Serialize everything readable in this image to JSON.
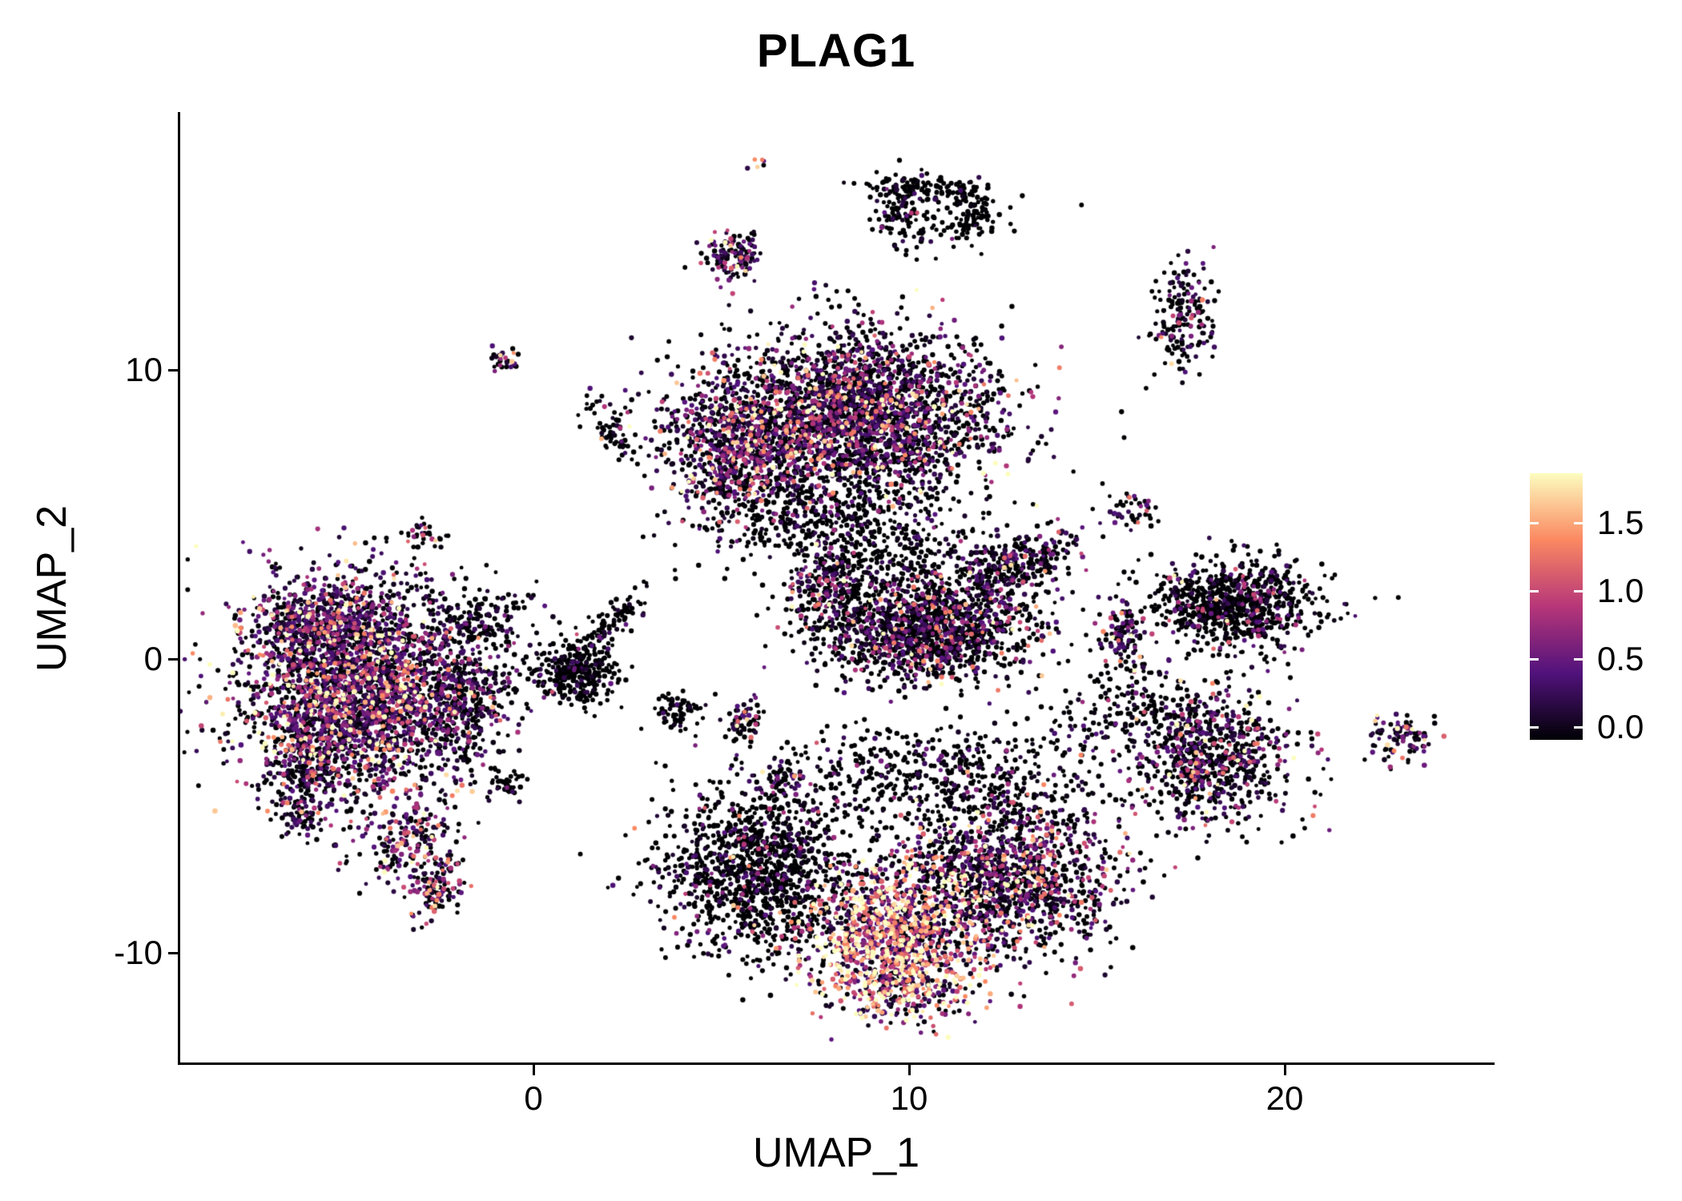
{
  "title": "PLAG1",
  "axes": {
    "x": {
      "label": "UMAP_1",
      "ticks": [
        {
          "value": 0,
          "label": "0"
        },
        {
          "value": 10,
          "label": "10"
        },
        {
          "value": 20,
          "label": "20"
        }
      ]
    },
    "y": {
      "label": "UMAP_2",
      "ticks": [
        {
          "value": 10,
          "label": "10"
        },
        {
          "value": 0,
          "label": "0"
        },
        {
          "value": -10,
          "label": "-10"
        }
      ]
    }
  },
  "colorbar": {
    "ticks": [
      {
        "value": 0.0,
        "label": "0.0"
      },
      {
        "value": 0.5,
        "label": "0.5"
      },
      {
        "value": 1.0,
        "label": "1.0"
      },
      {
        "value": 1.5,
        "label": "1.5"
      }
    ],
    "colormap": "magma",
    "stops": [
      "#000004",
      "#51127c",
      "#b63679",
      "#fb8861",
      "#fcfdbf"
    ]
  },
  "chart_data": {
    "type": "scatter",
    "title": "PLAG1",
    "xlabel": "UMAP_1",
    "ylabel": "UMAP_2",
    "xlim": [
      -9.4,
      25.5
    ],
    "ylim": [
      -13.8,
      18.8
    ],
    "vmax": 1.9,
    "expression_range": [
      0.0,
      1.9
    ],
    "legend_position": "right-colorbar",
    "grid": false,
    "point_count_approx": 18000,
    "clusters": [
      {
        "name": "left-main",
        "n": 2600,
        "cx": -4.7,
        "cy": -1.0,
        "sx": 1.5,
        "sy": 1.8,
        "rot": 0,
        "zero": 0.3,
        "mean": 0.55,
        "hot": 0.03
      },
      {
        "name": "left-top",
        "n": 420,
        "cx": -5.6,
        "cy": 1.3,
        "sx": 1.0,
        "sy": 0.75,
        "rot": 0,
        "zero": 0.32,
        "mean": 0.5,
        "hot": 0.02
      },
      {
        "name": "left-lower-ext",
        "n": 240,
        "cx": -6.1,
        "cy": -3.8,
        "sx": 0.6,
        "sy": 0.9,
        "rot": 0,
        "zero": 0.35,
        "mean": 0.5,
        "hot": 0.02
      },
      {
        "name": "left-right-edge",
        "n": 360,
        "cx": -1.9,
        "cy": -1.7,
        "sx": 0.8,
        "sy": 1.0,
        "rot": 0,
        "zero": 0.5,
        "mean": 0.4,
        "hot": 0.02
      },
      {
        "name": "left-tail-a",
        "n": 190,
        "cx": -3.3,
        "cy": -6.1,
        "sx": 0.55,
        "sy": 0.85,
        "rot": -30,
        "zero": 0.3,
        "mean": 0.55,
        "hot": 0.05
      },
      {
        "name": "left-tail-b",
        "n": 130,
        "cx": -2.5,
        "cy": -7.8,
        "sx": 0.35,
        "sy": 0.6,
        "rot": -20,
        "zero": 0.3,
        "mean": 0.55,
        "hot": 0.06
      },
      {
        "name": "left-topright-sparse",
        "n": 160,
        "cx": -1.4,
        "cy": 1.4,
        "sx": 0.75,
        "sy": 0.7,
        "rot": 0,
        "zero": 0.7,
        "mean": 0.3,
        "hot": 0.01
      },
      {
        "name": "left-below-small",
        "n": 40,
        "cx": -6.3,
        "cy": -5.4,
        "sx": 0.3,
        "sy": 0.3,
        "rot": 0,
        "zero": 0.5,
        "mean": 0.4,
        "hot": 0.02
      },
      {
        "name": "center-connector",
        "n": 280,
        "cx": 1.1,
        "cy": -0.5,
        "sx": 0.55,
        "sy": 0.55,
        "rot": 0,
        "zero": 0.78,
        "mean": 0.25,
        "hot": 0.01
      },
      {
        "name": "diagonal-streak",
        "n": 120,
        "cx": 1.9,
        "cy": 1.0,
        "sx": 1.15,
        "sy": 0.22,
        "rot": 54,
        "zero": 0.82,
        "mean": 0.22,
        "hot": 0.0
      },
      {
        "name": "mid-small-a",
        "n": 70,
        "cx": 3.8,
        "cy": -1.8,
        "sx": 0.35,
        "sy": 0.3,
        "rot": 0,
        "zero": 0.8,
        "mean": 0.2,
        "hot": 0.0
      },
      {
        "name": "mid-small-b",
        "n": 60,
        "cx": 5.6,
        "cy": -2.0,
        "sx": 0.3,
        "sy": 0.32,
        "rot": 0,
        "zero": 0.45,
        "mean": 0.55,
        "hot": 0.08
      },
      {
        "name": "mid-small-c",
        "n": 45,
        "cx": 6.6,
        "cy": -4.1,
        "sx": 0.28,
        "sy": 0.3,
        "rot": 0,
        "zero": 0.4,
        "mean": 0.55,
        "hot": 0.05
      },
      {
        "name": "mid-small-d",
        "n": 40,
        "cx": -0.8,
        "cy": -4.3,
        "sx": 0.3,
        "sy": 0.28,
        "rot": 0,
        "zero": 0.8,
        "mean": 0.2,
        "hot": 0.0
      },
      {
        "name": "topcenter-main",
        "n": 2600,
        "cx": 8.6,
        "cy": 8.4,
        "sx": 1.9,
        "sy": 1.45,
        "rot": 0,
        "zero": 0.45,
        "mean": 0.5,
        "hot": 0.02
      },
      {
        "name": "topcenter-left-lobe",
        "n": 700,
        "cx": 5.4,
        "cy": 7.0,
        "sx": 1.0,
        "sy": 1.15,
        "rot": 0,
        "zero": 0.33,
        "mean": 0.55,
        "hot": 0.03
      },
      {
        "name": "topcenter-below-scatter",
        "n": 430,
        "cx": 7.6,
        "cy": 4.9,
        "sx": 1.5,
        "sy": 0.9,
        "rot": 0,
        "zero": 0.72,
        "mean": 0.3,
        "hot": 0.01
      },
      {
        "name": "topcenter-below-scatter2",
        "n": 220,
        "cx": 9.9,
        "cy": 3.4,
        "sx": 1.1,
        "sy": 0.8,
        "rot": 0,
        "zero": 0.78,
        "mean": 0.28,
        "hot": 0.01
      },
      {
        "name": "midright-main",
        "n": 1400,
        "cx": 10.4,
        "cy": 1.0,
        "sx": 1.5,
        "sy": 0.85,
        "rot": 0,
        "zero": 0.55,
        "mean": 0.42,
        "hot": 0.02
      },
      {
        "name": "midright-arm",
        "n": 330,
        "cx": 12.7,
        "cy": 3.2,
        "sx": 0.95,
        "sy": 0.5,
        "rot": 25,
        "zero": 0.55,
        "mean": 0.4,
        "hot": 0.02
      },
      {
        "name": "midright-left-tip",
        "n": 220,
        "cx": 7.8,
        "cy": 2.4,
        "sx": 0.5,
        "sy": 0.8,
        "rot": 0,
        "zero": 0.45,
        "mean": 0.5,
        "hot": 0.03
      },
      {
        "name": "bottom-left-lobe",
        "n": 1300,
        "cx": 6.0,
        "cy": -7.3,
        "sx": 1.3,
        "sy": 1.5,
        "rot": 0,
        "zero": 0.74,
        "mean": 0.3,
        "hot": 0.01
      },
      {
        "name": "bottom-hot-core",
        "n": 1100,
        "cx": 9.6,
        "cy": -9.5,
        "sx": 1.15,
        "sy": 1.25,
        "rot": 0,
        "zero": 0.1,
        "mean": 1.0,
        "hot": 0.25
      },
      {
        "name": "bottom-right-lobe",
        "n": 1400,
        "cx": 12.5,
        "cy": -7.4,
        "sx": 1.5,
        "sy": 1.4,
        "rot": 0,
        "zero": 0.45,
        "mean": 0.5,
        "hot": 0.03
      },
      {
        "name": "bottom-top-scatter",
        "n": 480,
        "cx": 10.6,
        "cy": -4.0,
        "sx": 2.2,
        "sy": 0.9,
        "rot": 0,
        "zero": 0.76,
        "mean": 0.28,
        "hot": 0.01
      },
      {
        "name": "bottom-tip",
        "n": 200,
        "cx": 9.9,
        "cy": -11.5,
        "sx": 0.9,
        "sy": 0.5,
        "rot": 0,
        "zero": 0.2,
        "mean": 0.8,
        "hot": 0.12
      },
      {
        "name": "right-main",
        "n": 850,
        "cx": 18.5,
        "cy": 1.9,
        "sx": 1.1,
        "sy": 0.78,
        "rot": 0,
        "zero": 0.74,
        "mean": 0.3,
        "hot": 0.015
      },
      {
        "name": "right-left-small",
        "n": 110,
        "cx": 15.7,
        "cy": 0.7,
        "sx": 0.35,
        "sy": 0.5,
        "rot": 0,
        "zero": 0.45,
        "mean": 0.5,
        "hot": 0.05
      },
      {
        "name": "rightlower-main",
        "n": 750,
        "cx": 18.0,
        "cy": -3.4,
        "sx": 1.05,
        "sy": 1.1,
        "rot": 0,
        "zero": 0.5,
        "mean": 0.45,
        "hot": 0.025
      },
      {
        "name": "rightlower-scatter",
        "n": 200,
        "cx": 16.0,
        "cy": -1.8,
        "sx": 1.2,
        "sy": 0.8,
        "rot": 0,
        "zero": 0.82,
        "mean": 0.25,
        "hot": 0.01
      },
      {
        "name": "farright-small",
        "n": 90,
        "cx": 23.1,
        "cy": -2.7,
        "sx": 0.42,
        "sy": 0.45,
        "rot": 0,
        "zero": 0.35,
        "mean": 0.55,
        "hot": 0.08
      },
      {
        "name": "top-arc-a",
        "n": 140,
        "cx": 10.4,
        "cy": 16.1,
        "sx": 0.85,
        "sy": 0.28,
        "rot": -8,
        "zero": 0.85,
        "mean": 0.2,
        "hot": 0.01
      },
      {
        "name": "top-arc-b",
        "n": 80,
        "cx": 11.7,
        "cy": 15.3,
        "sx": 0.3,
        "sy": 0.65,
        "rot": 0,
        "zero": 0.85,
        "mean": 0.2,
        "hot": 0.01
      },
      {
        "name": "top-arc-c",
        "n": 70,
        "cx": 9.7,
        "cy": 15.2,
        "sx": 0.35,
        "sy": 0.55,
        "rot": 0,
        "zero": 0.8,
        "mean": 0.25,
        "hot": 0.03
      },
      {
        "name": "top-arc-scatter",
        "n": 50,
        "cx": 10.7,
        "cy": 14.8,
        "sx": 0.7,
        "sy": 0.4,
        "rot": 0,
        "zero": 0.9,
        "mean": 0.2,
        "hot": 0.0
      },
      {
        "name": "top-small-left",
        "n": 130,
        "cx": 5.3,
        "cy": 13.9,
        "sx": 0.42,
        "sy": 0.45,
        "rot": 0,
        "zero": 0.4,
        "mean": 0.55,
        "hot": 0.04
      },
      {
        "name": "top-tiny-red",
        "n": 6,
        "cx": 5.9,
        "cy": 16.9,
        "sx": 0.15,
        "sy": 0.15,
        "rot": 0,
        "zero": 0.2,
        "mean": 1.0,
        "hot": 0.4
      },
      {
        "name": "topright-vertical",
        "n": 170,
        "cx": 17.3,
        "cy": 11.7,
        "sx": 0.42,
        "sy": 0.95,
        "rot": 0,
        "zero": 0.55,
        "mean": 0.45,
        "hot": 0.07
      },
      {
        "name": "tiny-north",
        "n": 30,
        "cx": -0.8,
        "cy": 10.2,
        "sx": 0.28,
        "sy": 0.25,
        "rot": 0,
        "zero": 0.5,
        "mean": 0.5,
        "hot": 0.1
      },
      {
        "name": "small-streak-nw",
        "n": 70,
        "cx": 2.1,
        "cy": 8.0,
        "sx": 0.3,
        "sy": 0.7,
        "rot": 15,
        "zero": 0.6,
        "mean": 0.35,
        "hot": 0.08
      },
      {
        "name": "tiny-west",
        "n": 35,
        "cx": -2.9,
        "cy": 4.3,
        "sx": 0.3,
        "sy": 0.28,
        "rot": 0,
        "zero": 0.5,
        "mean": 0.5,
        "hot": 0.08
      },
      {
        "name": "small-pair-east",
        "n": 45,
        "cx": 16.0,
        "cy": 5.1,
        "sx": 0.42,
        "sy": 0.33,
        "rot": 0,
        "zero": 0.65,
        "mean": 0.35,
        "hot": 0.06
      }
    ]
  }
}
